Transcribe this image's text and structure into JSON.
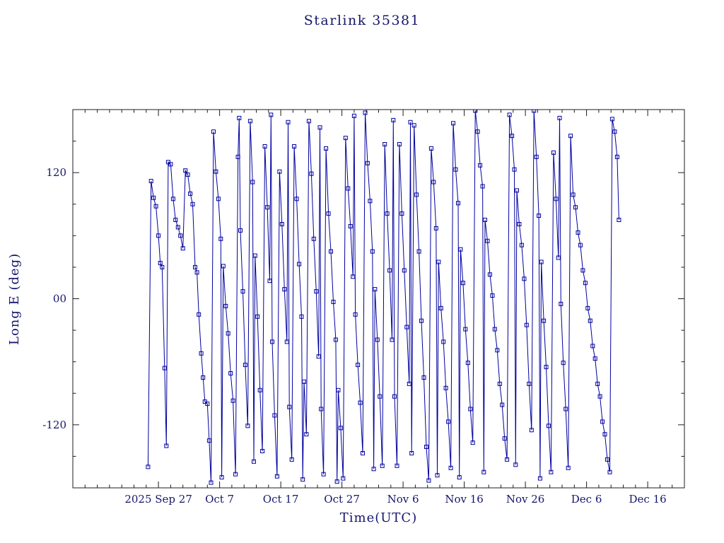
{
  "chart_data": {
    "type": "line",
    "title": "Starlink 35381",
    "xlabel": "Time(UTC)",
    "ylabel": "Long E (deg)",
    "marker": "open-square",
    "line_color": "#0000a0",
    "text_color": "#16166b",
    "frame_color": "#1c1c1c",
    "legend": "none",
    "grid": false,
    "xlim": [
      0,
      100
    ],
    "ylim": [
      -180,
      180
    ],
    "x_unit": "days, t=0 at 2025 Sep 13 00:00 UTC",
    "x_ticks": [
      {
        "t": 14,
        "label": "2025 Sep 27"
      },
      {
        "t": 24,
        "label": "Oct 7"
      },
      {
        "t": 34,
        "label": "Oct 17"
      },
      {
        "t": 44,
        "label": "Oct 27"
      },
      {
        "t": 54,
        "label": "Nov 6"
      },
      {
        "t": 64,
        "label": "Nov 16"
      },
      {
        "t": 74,
        "label": "Nov 26"
      },
      {
        "t": 84,
        "label": "Dec 6"
      },
      {
        "t": 94,
        "label": "Dec 16"
      }
    ],
    "x_minor_step": 2,
    "y_ticks": [
      {
        "v": -120,
        "label": "-120"
      },
      {
        "v": 0,
        "label": "00"
      },
      {
        "v": 120,
        "label": "120"
      }
    ],
    "y_minor_step": 30,
    "points": [
      [
        12.3,
        -160
      ],
      [
        12.8,
        112
      ],
      [
        13.2,
        96
      ],
      [
        13.6,
        88
      ],
      [
        14.0,
        60
      ],
      [
        14.3,
        34
      ],
      [
        14.6,
        30
      ],
      [
        15.0,
        -66
      ],
      [
        15.3,
        -140
      ],
      [
        15.6,
        130
      ],
      [
        16.0,
        128
      ],
      [
        16.4,
        95
      ],
      [
        16.8,
        75
      ],
      [
        17.2,
        68
      ],
      [
        17.6,
        60
      ],
      [
        18.0,
        48
      ],
      [
        18.4,
        122
      ],
      [
        18.8,
        118
      ],
      [
        19.2,
        100
      ],
      [
        19.6,
        90
      ],
      [
        20.0,
        30
      ],
      [
        20.3,
        25
      ],
      [
        20.6,
        -15
      ],
      [
        21.0,
        -52
      ],
      [
        21.3,
        -75
      ],
      [
        21.6,
        -98
      ],
      [
        22.0,
        -100
      ],
      [
        22.3,
        -135
      ],
      [
        22.6,
        -175
      ],
      [
        23.0,
        159
      ],
      [
        23.4,
        121
      ],
      [
        23.8,
        95
      ],
      [
        24.2,
        57
      ],
      [
        24.35,
        -170
      ],
      [
        24.6,
        31
      ],
      [
        25.0,
        -7
      ],
      [
        25.4,
        -33
      ],
      [
        25.8,
        -71
      ],
      [
        26.2,
        -97
      ],
      [
        26.6,
        -167
      ],
      [
        27.0,
        135
      ],
      [
        27.2,
        172
      ],
      [
        27.4,
        65
      ],
      [
        27.8,
        7
      ],
      [
        28.2,
        -63
      ],
      [
        28.6,
        -121
      ],
      [
        29.0,
        169
      ],
      [
        29.4,
        111
      ],
      [
        29.6,
        -155
      ],
      [
        29.8,
        41
      ],
      [
        30.2,
        -17
      ],
      [
        30.6,
        -87
      ],
      [
        31.0,
        -145
      ],
      [
        31.4,
        145
      ],
      [
        31.8,
        87
      ],
      [
        32.2,
        17
      ],
      [
        32.4,
        175
      ],
      [
        32.6,
        -41
      ],
      [
        33.0,
        -111
      ],
      [
        33.4,
        -169
      ],
      [
        33.8,
        121
      ],
      [
        34.2,
        71
      ],
      [
        34.6,
        9
      ],
      [
        35.0,
        -41
      ],
      [
        35.2,
        168
      ],
      [
        35.4,
        -103
      ],
      [
        35.8,
        -153
      ],
      [
        36.2,
        145
      ],
      [
        36.6,
        95
      ],
      [
        37.0,
        33
      ],
      [
        37.4,
        -17
      ],
      [
        37.6,
        -172
      ],
      [
        37.8,
        -79
      ],
      [
        38.2,
        -129
      ],
      [
        38.6,
        169
      ],
      [
        39.0,
        119
      ],
      [
        39.4,
        57
      ],
      [
        39.8,
        7
      ],
      [
        40.2,
        -55
      ],
      [
        40.4,
        163
      ],
      [
        40.6,
        -105
      ],
      [
        41.0,
        -167
      ],
      [
        41.4,
        143
      ],
      [
        41.8,
        81
      ],
      [
        42.2,
        45
      ],
      [
        42.6,
        -3
      ],
      [
        43.0,
        -39
      ],
      [
        43.2,
        -174
      ],
      [
        43.4,
        -87
      ],
      [
        43.8,
        -123
      ],
      [
        44.2,
        -171
      ],
      [
        44.6,
        153
      ],
      [
        45.0,
        105
      ],
      [
        45.4,
        69
      ],
      [
        45.8,
        21
      ],
      [
        46.0,
        174
      ],
      [
        46.2,
        -15
      ],
      [
        46.6,
        -63
      ],
      [
        47.0,
        -99
      ],
      [
        47.4,
        -147
      ],
      [
        47.8,
        177
      ],
      [
        48.2,
        129
      ],
      [
        48.6,
        93
      ],
      [
        49.0,
        45
      ],
      [
        49.2,
        -162
      ],
      [
        49.4,
        9
      ],
      [
        49.8,
        -39
      ],
      [
        50.2,
        -93
      ],
      [
        50.6,
        -159
      ],
      [
        51.0,
        147
      ],
      [
        51.4,
        81
      ],
      [
        51.8,
        27
      ],
      [
        52.2,
        -39
      ],
      [
        52.4,
        170
      ],
      [
        52.6,
        -93
      ],
      [
        53.0,
        -159
      ],
      [
        53.4,
        147
      ],
      [
        53.8,
        81
      ],
      [
        54.2,
        27
      ],
      [
        54.6,
        -27
      ],
      [
        55.0,
        -81
      ],
      [
        55.2,
        168
      ],
      [
        55.4,
        -147
      ],
      [
        55.8,
        165
      ],
      [
        56.2,
        99
      ],
      [
        56.6,
        45
      ],
      [
        57.0,
        -21
      ],
      [
        57.4,
        -75
      ],
      [
        57.8,
        -141
      ],
      [
        58.2,
        -173
      ],
      [
        58.6,
        143
      ],
      [
        59.0,
        111
      ],
      [
        59.4,
        67
      ],
      [
        59.6,
        -168
      ],
      [
        59.8,
        35
      ],
      [
        60.2,
        -9
      ],
      [
        60.6,
        -41
      ],
      [
        61.0,
        -85
      ],
      [
        61.4,
        -117
      ],
      [
        61.8,
        -161
      ],
      [
        62.2,
        167
      ],
      [
        62.6,
        123
      ],
      [
        63.0,
        91
      ],
      [
        63.2,
        -170
      ],
      [
        63.4,
        47
      ],
      [
        63.8,
        15
      ],
      [
        64.2,
        -29
      ],
      [
        64.6,
        -61
      ],
      [
        65.0,
        -105
      ],
      [
        65.4,
        -137
      ],
      [
        65.8,
        179
      ],
      [
        66.2,
        159
      ],
      [
        66.6,
        127
      ],
      [
        67.0,
        107
      ],
      [
        67.2,
        -165
      ],
      [
        67.4,
        75
      ],
      [
        67.8,
        55
      ],
      [
        68.2,
        23
      ],
      [
        68.6,
        3
      ],
      [
        69.0,
        -29
      ],
      [
        69.4,
        -49
      ],
      [
        69.8,
        -81
      ],
      [
        70.2,
        -101
      ],
      [
        70.6,
        -133
      ],
      [
        71.0,
        -153
      ],
      [
        71.4,
        175
      ],
      [
        71.8,
        155
      ],
      [
        72.2,
        123
      ],
      [
        72.4,
        -158
      ],
      [
        72.6,
        103
      ],
      [
        73.0,
        71
      ],
      [
        73.4,
        51
      ],
      [
        73.8,
        19
      ],
      [
        74.2,
        -25
      ],
      [
        74.6,
        -81
      ],
      [
        75.0,
        -125
      ],
      [
        75.4,
        179
      ],
      [
        75.8,
        135
      ],
      [
        76.2,
        79
      ],
      [
        76.4,
        -171
      ],
      [
        76.6,
        35
      ],
      [
        77.0,
        -21
      ],
      [
        77.4,
        -65
      ],
      [
        77.8,
        -121
      ],
      [
        78.2,
        -165
      ],
      [
        78.6,
        139
      ],
      [
        79.0,
        95
      ],
      [
        79.4,
        39
      ],
      [
        79.6,
        172
      ],
      [
        79.8,
        -5
      ],
      [
        80.2,
        -61
      ],
      [
        80.6,
        -105
      ],
      [
        81.0,
        -161
      ],
      [
        81.4,
        155
      ],
      [
        81.8,
        99
      ],
      [
        82.2,
        87
      ],
      [
        82.6,
        63
      ],
      [
        83.0,
        51
      ],
      [
        83.4,
        27
      ],
      [
        83.8,
        15
      ],
      [
        84.2,
        -9
      ],
      [
        84.6,
        -21
      ],
      [
        85.0,
        -45
      ],
      [
        85.4,
        -57
      ],
      [
        85.8,
        -81
      ],
      [
        86.2,
        -93
      ],
      [
        86.6,
        -117
      ],
      [
        87.0,
        -129
      ],
      [
        87.4,
        -153
      ],
      [
        87.8,
        -165
      ],
      [
        88.2,
        171
      ],
      [
        88.6,
        159
      ],
      [
        89.0,
        135
      ],
      [
        89.3,
        75
      ]
    ]
  }
}
